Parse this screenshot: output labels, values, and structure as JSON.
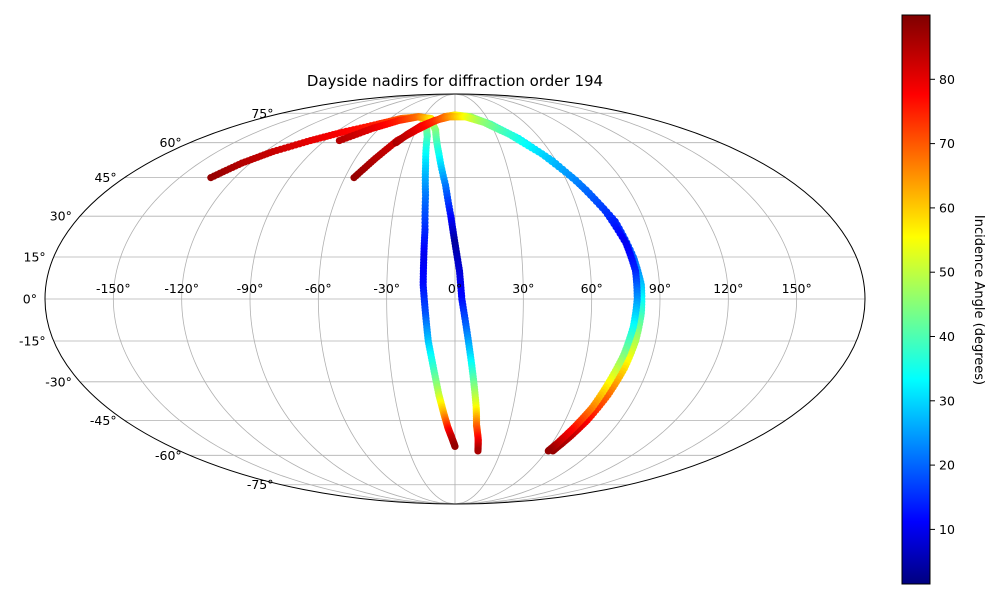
{
  "chart_data": {
    "type": "scatter",
    "projection": "mollweide",
    "title": "Dayside nadirs for diffraction order 194",
    "grid": true,
    "longitude_ticks": [
      "-150°",
      "-120°",
      "-90°",
      "-60°",
      "-30°",
      "0°",
      "30°",
      "60°",
      "90°",
      "120°",
      "150°"
    ],
    "longitude_values": [
      -150,
      -120,
      -90,
      -60,
      -30,
      0,
      30,
      60,
      90,
      120,
      150
    ],
    "latitude_ticks": [
      "75°",
      "60°",
      "45°",
      "30°",
      "15°",
      "0°",
      "-15°",
      "-30°",
      "-45°",
      "-60°",
      "-75°"
    ],
    "latitude_values": [
      75,
      60,
      45,
      30,
      15,
      0,
      -15,
      -30,
      -45,
      -60,
      -75
    ],
    "colorbar": {
      "label": "Incidence Angle (degrees)",
      "colormap": "jet",
      "range": [
        1.5,
        90
      ],
      "ticks": [
        "10",
        "20",
        "30",
        "40",
        "50",
        "60",
        "70",
        "80"
      ],
      "tick_values": [
        10,
        20,
        30,
        40,
        50,
        60,
        70,
        80
      ]
    },
    "series": [
      {
        "tracks": [
          {
            "points": [
              [
                -133,
                45,
                88
              ],
              [
                -125,
                51,
                85
              ],
              [
                -115,
                56,
                83
              ],
              [
                -100,
                61,
                80
              ],
              [
                -85,
                65,
                78
              ],
              [
                -65,
                69,
                75
              ],
              [
                -50,
                72,
                70
              ],
              [
                -35,
                73,
                60
              ],
              [
                -25,
                71,
                50
              ],
              [
                -20,
                63,
                40
              ],
              [
                -17,
                50,
                30
              ],
              [
                -15,
                38,
                22
              ],
              [
                -14,
                25,
                15
              ],
              [
                -14,
                15,
                10
              ],
              [
                -14,
                5,
                12
              ],
              [
                -13,
                -5,
                18
              ],
              [
                -12,
                -15,
                28
              ],
              [
                -10,
                -25,
                38
              ],
              [
                -8,
                -35,
                50
              ],
              [
                -6,
                -42,
                62
              ],
              [
                -4,
                -48,
                75
              ],
              [
                -2,
                -52,
                83
              ],
              [
                0,
                -56,
                88
              ]
            ]
          },
          {
            "points": [
              [
                -80,
                61,
                85
              ],
              [
                -65,
                67,
                80
              ],
              [
                -50,
                71,
                75
              ],
              [
                -35,
                73,
                68
              ],
              [
                -22,
                72,
                58
              ],
              [
                -15,
                66,
                45
              ],
              [
                -10,
                55,
                35
              ],
              [
                -5,
                42,
                22
              ],
              [
                -2,
                30,
                12
              ],
              [
                0,
                20,
                4
              ],
              [
                2,
                10,
                8
              ],
              [
                3,
                0,
                12
              ],
              [
                5,
                -10,
                20
              ],
              [
                7,
                -20,
                30
              ],
              [
                9,
                -30,
                42
              ],
              [
                11,
                -40,
                55
              ],
              [
                12,
                -47,
                68
              ],
              [
                14,
                -53,
                78
              ],
              [
                15,
                -58,
                86
              ]
            ]
          },
          {
            "points": [
              [
                -55,
                45,
                88
              ],
              [
                -48,
                53,
                85
              ],
              [
                -40,
                61,
                82
              ],
              [
                -30,
                66,
                79
              ],
              [
                -20,
                70,
                75
              ],
              [
                -10,
                73,
                68
              ],
              [
                0,
                74,
                58
              ],
              [
                15,
                73,
                48
              ],
              [
                30,
                69,
                40
              ],
              [
                45,
                62,
                33
              ],
              [
                58,
                52,
                27
              ],
              [
                68,
                40,
                20
              ],
              [
                76,
                28,
                14
              ],
              [
                80,
                15,
                20
              ],
              [
                82,
                5,
                28
              ],
              [
                82,
                -5,
                38
              ],
              [
                81,
                -15,
                48
              ],
              [
                79,
                -25,
                58
              ],
              [
                76,
                -35,
                68
              ],
              [
                72,
                -45,
                77
              ],
              [
                68,
                -52,
                84
              ],
              [
                64,
                -58,
                88
              ]
            ]
          },
          {
            "points": [
              [
                -40,
                60,
                86
              ],
              [
                -35,
                64,
                83
              ],
              [
                -28,
                68,
                79
              ],
              [
                -18,
                71,
                74
              ],
              [
                -5,
                73,
                65
              ],
              [
                10,
                73,
                55
              ],
              [
                25,
                70,
                46
              ],
              [
                40,
                64,
                38
              ],
              [
                54,
                55,
                30
              ],
              [
                65,
                44,
                23
              ],
              [
                73,
                32,
                16
              ],
              [
                78,
                20,
                10
              ],
              [
                80,
                10,
                14
              ],
              [
                80,
                0,
                24
              ],
              [
                79,
                -10,
                34
              ],
              [
                77,
                -20,
                44
              ],
              [
                74,
                -30,
                55
              ],
              [
                71,
                -40,
                66
              ],
              [
                67,
                -48,
                76
              ],
              [
                63,
                -55,
                84
              ],
              [
                61,
                -58,
                88
              ]
            ]
          }
        ]
      }
    ]
  }
}
